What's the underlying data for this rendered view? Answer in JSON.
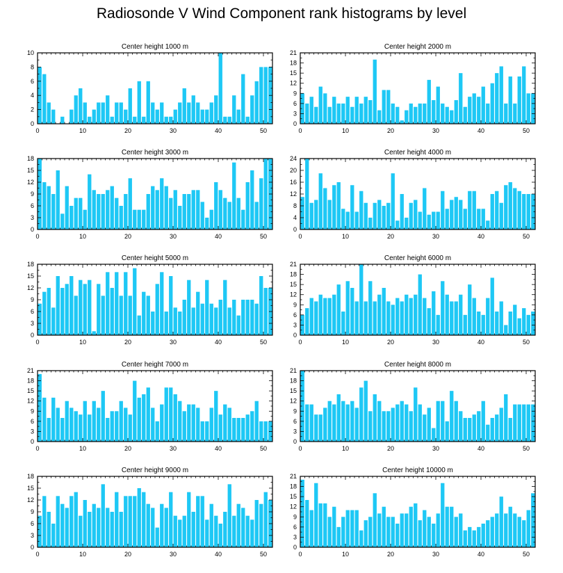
{
  "title": "Radiosonde V Wind Component rank histograms by level",
  "colors": {
    "bar": "#1ec8f5",
    "axis": "#000000",
    "background": "#ffffff"
  },
  "chart_data": [
    {
      "type": "bar",
      "title": "Center height 1000 m",
      "ylim": [
        0,
        10
      ],
      "yticks": [
        0,
        2,
        4,
        6,
        8,
        10
      ],
      "xlim": [
        0,
        52
      ],
      "xticks": [
        0,
        10,
        20,
        30,
        40,
        50
      ],
      "values": [
        8,
        7,
        3,
        2,
        0,
        1,
        0,
        2,
        4,
        5,
        3,
        1,
        2,
        3,
        3,
        4,
        1,
        3,
        3,
        2,
        5,
        1,
        6,
        1,
        6,
        3,
        2,
        3,
        1,
        1,
        2,
        3,
        5,
        3,
        4,
        3,
        2,
        2,
        3,
        4,
        10,
        1,
        1,
        4,
        2,
        7,
        1,
        4,
        6,
        8,
        8,
        8
      ]
    },
    {
      "type": "bar",
      "title": "Center height 2000 m",
      "ylim": [
        0,
        21
      ],
      "yticks": [
        0,
        3,
        6,
        9,
        12,
        15,
        18,
        21
      ],
      "xlim": [
        0,
        52
      ],
      "xticks": [
        0,
        10,
        20,
        30,
        40,
        50
      ],
      "values": [
        9,
        6,
        8,
        5,
        11,
        9,
        5,
        8,
        6,
        6,
        8,
        5,
        8,
        6,
        8,
        7,
        19,
        4,
        10,
        10,
        6,
        5,
        1,
        4,
        6,
        5,
        6,
        6,
        13,
        7,
        11,
        6,
        5,
        4,
        7,
        15,
        5,
        8,
        9,
        8,
        11,
        6,
        12,
        15,
        17,
        6,
        14,
        6,
        14,
        17,
        9,
        9
      ]
    },
    {
      "type": "bar",
      "title": "Center height 3000 m",
      "ylim": [
        0,
        18
      ],
      "yticks": [
        0,
        3,
        6,
        9,
        12,
        15,
        18
      ],
      "xlim": [
        0,
        52
      ],
      "xticks": [
        0,
        10,
        20,
        30,
        40,
        50
      ],
      "values": [
        18,
        12,
        11,
        9,
        15,
        4,
        11,
        6,
        8,
        8,
        5,
        14,
        10,
        9,
        9,
        10,
        11,
        8,
        6,
        9,
        13,
        5,
        5,
        5,
        9,
        11,
        10,
        13,
        11,
        8,
        10,
        6,
        9,
        9,
        10,
        10,
        7,
        3,
        5,
        12,
        10,
        8,
        7,
        17,
        8,
        5,
        12,
        15,
        7,
        13,
        18,
        18
      ]
    },
    {
      "type": "bar",
      "title": "Center height 4000 m",
      "ylim": [
        0,
        24
      ],
      "yticks": [
        0,
        4,
        8,
        12,
        16,
        20,
        24
      ],
      "xlim": [
        0,
        52
      ],
      "xticks": [
        0,
        10,
        20,
        30,
        40,
        50
      ],
      "values": [
        11,
        24,
        9,
        10,
        19,
        14,
        10,
        15,
        16,
        7,
        6,
        15,
        6,
        13,
        9,
        4,
        9,
        10,
        8,
        9,
        19,
        3,
        12,
        4,
        9,
        10,
        6,
        14,
        5,
        6,
        6,
        13,
        7,
        10,
        11,
        10,
        7,
        13,
        13,
        7,
        7,
        3,
        12,
        13,
        9,
        15,
        16,
        14,
        13,
        12,
        12,
        12
      ]
    },
    {
      "type": "bar",
      "title": "Center height 5000 m",
      "ylim": [
        0,
        18
      ],
      "yticks": [
        0,
        3,
        6,
        9,
        12,
        15,
        18
      ],
      "xlim": [
        0,
        52
      ],
      "xticks": [
        0,
        10,
        20,
        30,
        40,
        50
      ],
      "values": [
        8,
        11,
        12,
        7,
        15,
        12,
        13,
        15,
        10,
        14,
        13,
        14,
        1,
        13,
        10,
        16,
        12,
        16,
        10,
        16,
        10,
        17,
        5,
        11,
        10,
        6,
        13,
        16,
        6,
        15,
        7,
        6,
        9,
        14,
        7,
        11,
        8,
        14,
        8,
        7,
        9,
        14,
        7,
        9,
        5,
        9,
        9,
        9,
        8,
        15,
        12,
        12
      ]
    },
    {
      "type": "bar",
      "title": "Center height 6000 m",
      "ylim": [
        0,
        21
      ],
      "yticks": [
        0,
        3,
        6,
        9,
        12,
        15,
        18,
        21
      ],
      "xlim": [
        0,
        52
      ],
      "xticks": [
        0,
        10,
        20,
        30,
        40,
        50
      ],
      "values": [
        6,
        8,
        11,
        10,
        12,
        11,
        11,
        12,
        15,
        7,
        16,
        14,
        10,
        21,
        10,
        16,
        10,
        12,
        14,
        10,
        9,
        11,
        10,
        12,
        11,
        12,
        18,
        11,
        8,
        13,
        6,
        16,
        12,
        10,
        10,
        12,
        6,
        15,
        11,
        7,
        6,
        11,
        17,
        7,
        10,
        3,
        7,
        9,
        5,
        8,
        6,
        7
      ]
    },
    {
      "type": "bar",
      "title": "Center height 7000 m",
      "ylim": [
        0,
        21
      ],
      "yticks": [
        0,
        3,
        6,
        9,
        12,
        15,
        18,
        21
      ],
      "xlim": [
        0,
        52
      ],
      "xticks": [
        0,
        10,
        20,
        30,
        40,
        50
      ],
      "values": [
        20,
        13,
        7,
        13,
        10,
        7,
        12,
        10,
        9,
        8,
        12,
        8,
        12,
        10,
        15,
        7,
        9,
        9,
        12,
        10,
        8,
        18,
        13,
        14,
        16,
        10,
        6,
        11,
        16,
        16,
        14,
        12,
        9,
        11,
        11,
        10,
        6,
        6,
        10,
        15,
        8,
        11,
        10,
        7,
        7,
        7,
        8,
        9,
        12,
        6,
        6,
        6
      ]
    },
    {
      "type": "bar",
      "title": "Center height 8000 m",
      "ylim": [
        0,
        21
      ],
      "yticks": [
        0,
        3,
        6,
        9,
        12,
        15,
        18,
        21
      ],
      "xlim": [
        0,
        52
      ],
      "xticks": [
        0,
        10,
        20,
        30,
        40,
        50
      ],
      "values": [
        21,
        11,
        11,
        8,
        8,
        10,
        12,
        11,
        14,
        12,
        11,
        12,
        10,
        16,
        18,
        9,
        14,
        12,
        9,
        9,
        10,
        11,
        12,
        11,
        9,
        16,
        11,
        8,
        10,
        4,
        12,
        12,
        6,
        15,
        12,
        9,
        7,
        7,
        8,
        9,
        12,
        5,
        7,
        8,
        10,
        14,
        7,
        11,
        11,
        11,
        11,
        11
      ]
    },
    {
      "type": "bar",
      "title": "Center height 9000 m",
      "ylim": [
        0,
        18
      ],
      "yticks": [
        0,
        3,
        6,
        9,
        12,
        15,
        18
      ],
      "xlim": [
        0,
        52
      ],
      "xticks": [
        0,
        10,
        20,
        30,
        40,
        50
      ],
      "values": [
        8,
        13,
        9,
        6,
        13,
        11,
        10,
        13,
        14,
        8,
        12,
        9,
        11,
        10,
        16,
        10,
        9,
        14,
        9,
        13,
        13,
        13,
        15,
        14,
        11,
        10,
        5,
        11,
        10,
        14,
        8,
        7,
        8,
        14,
        9,
        13,
        13,
        7,
        11,
        8,
        6,
        9,
        16,
        8,
        11,
        10,
        8,
        7,
        12,
        11,
        14,
        12
      ]
    },
    {
      "type": "bar",
      "title": "Center height 10000 m",
      "ylim": [
        0,
        21
      ],
      "yticks": [
        0,
        3,
        6,
        9,
        12,
        15,
        18,
        21
      ],
      "xlim": [
        0,
        52
      ],
      "xticks": [
        0,
        10,
        20,
        30,
        40,
        50
      ],
      "values": [
        20,
        14,
        11,
        19,
        13,
        13,
        9,
        12,
        6,
        9,
        11,
        11,
        11,
        5,
        8,
        9,
        16,
        10,
        12,
        9,
        9,
        7,
        10,
        10,
        12,
        13,
        8,
        11,
        9,
        7,
        10,
        19,
        12,
        12,
        9,
        10,
        5,
        6,
        5,
        6,
        7,
        8,
        9,
        10,
        15,
        10,
        12,
        10,
        9,
        8,
        11,
        16
      ]
    }
  ]
}
